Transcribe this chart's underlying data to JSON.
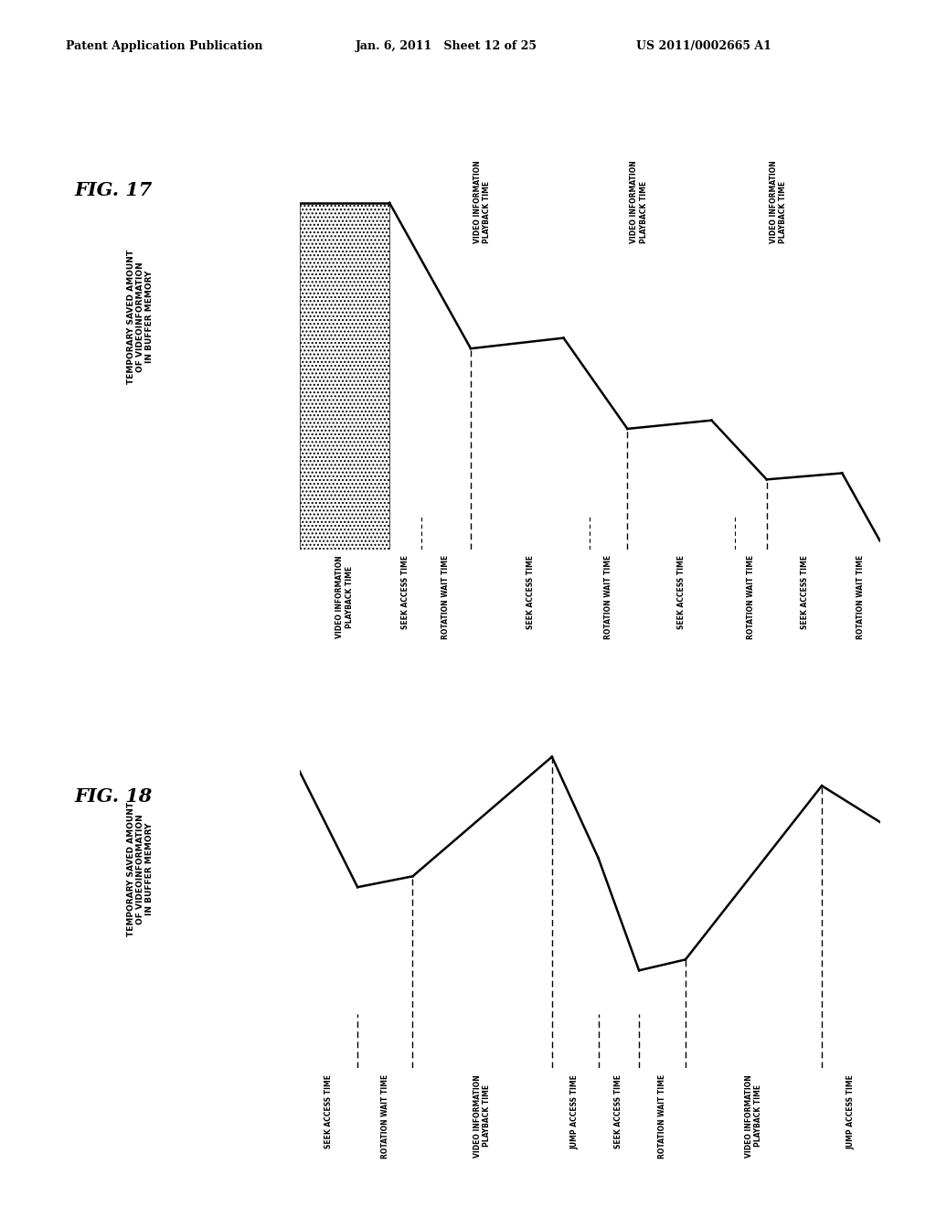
{
  "header_left": "Patent Application Publication",
  "header_center": "Jan. 6, 2011   Sheet 12 of 25",
  "header_right": "US 2011/0002665 A1",
  "fig17_label": "FIG. 17",
  "fig18_label": "FIG. 18",
  "ylabel": "TEMPORARY SAVED AMOUNT\nOF VIDEOINFORMATION\nIN BUFFER MEMORY",
  "background_color": "#ffffff"
}
